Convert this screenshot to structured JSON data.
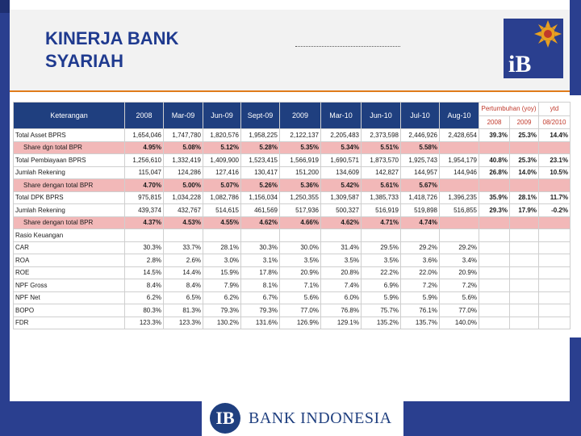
{
  "slide": {
    "title_line1": "KINERJA BANK",
    "title_line2": "SYARIAH",
    "logo_text": "iB",
    "footer_logo_mark": "IB",
    "footer_logo_text": "BANK INDONESIA",
    "colors": {
      "primary": "#2a3f8f",
      "accent": "#e07b1b",
      "share_row": "#f2b8b8"
    }
  },
  "table": {
    "headers": [
      "Keterangan",
      "2008",
      "Mar-09",
      "Jun-09",
      "Sept-09",
      "2009",
      "Mar-10",
      "Jun-10",
      "Jul-10",
      "Aug-10"
    ],
    "growth_header": "Pertumbuhan (yoy)",
    "ytd_header": "ytd",
    "growth_sub": [
      "2008",
      "2009",
      "08/2010"
    ],
    "rows": [
      {
        "label": "Total Asset BPRS",
        "values": [
          "1,654,046",
          "1,747,780",
          "1,820,576",
          "1,958,225",
          "2,122,137",
          "2,205,483",
          "2,373,598",
          "2,446,926",
          "2,428,654"
        ],
        "growth": [
          "39.3%",
          "25.3%",
          "14.4%"
        ],
        "type": "main"
      },
      {
        "label": "Share dgn total BPR",
        "values": [
          "4.95%",
          "5.08%",
          "5.12%",
          "5.28%",
          "5.35%",
          "5.34%",
          "5.51%",
          "5.58%",
          ""
        ],
        "growth": [
          "",
          "",
          ""
        ],
        "type": "share"
      },
      {
        "label": "Total Pembiayaan BPRS",
        "values": [
          "1,256,610",
          "1,332,419",
          "1,409,900",
          "1,523,415",
          "1,566,919",
          "1,690,571",
          "1,873,570",
          "1,925,743",
          "1,954,179"
        ],
        "growth": [
          "40.8%",
          "25.3%",
          "23.1%"
        ],
        "type": "main"
      },
      {
        "label": "Jumlah Rekening",
        "values": [
          "115,047",
          "124,286",
          "127,416",
          "130,417",
          "151,200",
          "134,609",
          "142,827",
          "144,957",
          "144,946"
        ],
        "growth": [
          "26.8%",
          "14.0%",
          "10.5%"
        ],
        "type": "ind"
      },
      {
        "label": "Share dengan total BPR",
        "values": [
          "4.70%",
          "5.00%",
          "5.07%",
          "5.26%",
          "5.36%",
          "5.42%",
          "5.61%",
          "5.67%",
          ""
        ],
        "growth": [
          "",
          "",
          ""
        ],
        "type": "share"
      },
      {
        "label": "Total DPK BPRS",
        "values": [
          "975,815",
          "1,034,228",
          "1,082,786",
          "1,156,034",
          "1,250,355",
          "1,309,587",
          "1,385,733",
          "1,418,726",
          "1,396,235"
        ],
        "growth": [
          "35.9%",
          "28.1%",
          "11.7%"
        ],
        "type": "main"
      },
      {
        "label": "Jumlah Rekening",
        "values": [
          "439,374",
          "432,767",
          "514,615",
          "461,569",
          "517,936",
          "500,327",
          "516,919",
          "519,898",
          "516,855"
        ],
        "growth": [
          "29.3%",
          "17.9%",
          "-0.2%"
        ],
        "type": "ind"
      },
      {
        "label": "Share dengan total BPR",
        "values": [
          "4.37%",
          "4.53%",
          "4.55%",
          "4.62%",
          "4.66%",
          "4.62%",
          "4.71%",
          "4.74%",
          ""
        ],
        "growth": [
          "",
          "",
          ""
        ],
        "type": "share"
      },
      {
        "label": "Rasio Keuangan",
        "values": [
          "",
          "",
          "",
          "",
          "",
          "",
          "",
          "",
          ""
        ],
        "growth": [
          "",
          "",
          ""
        ],
        "type": "main"
      },
      {
        "label": "CAR",
        "values": [
          "30.3%",
          "33.7%",
          "28.1%",
          "30.3%",
          "30.0%",
          "31.4%",
          "29.5%",
          "29.2%",
          "29.2%"
        ],
        "growth": [
          "",
          "",
          ""
        ],
        "type": "ind"
      },
      {
        "label": "ROA",
        "values": [
          "2.8%",
          "2.6%",
          "3.0%",
          "3.1%",
          "3.5%",
          "3.5%",
          "3.5%",
          "3.6%",
          "3.4%"
        ],
        "growth": [
          "",
          "",
          ""
        ],
        "type": "ind"
      },
      {
        "label": "ROE",
        "values": [
          "14.5%",
          "14.4%",
          "15.9%",
          "17.8%",
          "20.9%",
          "20.8%",
          "22.2%",
          "22.0%",
          "20.9%"
        ],
        "growth": [
          "",
          "",
          ""
        ],
        "type": "ind"
      },
      {
        "label": "NPF Gross",
        "values": [
          "8.4%",
          "8.4%",
          "7.9%",
          "8.1%",
          "7.1%",
          "7.4%",
          "6.9%",
          "7.2%",
          "7.2%"
        ],
        "growth": [
          "",
          "",
          ""
        ],
        "type": "ind"
      },
      {
        "label": "NPF Net",
        "values": [
          "6.2%",
          "6.5%",
          "6.2%",
          "6.7%",
          "5.6%",
          "6.0%",
          "5.9%",
          "5.9%",
          "5.6%"
        ],
        "growth": [
          "",
          "",
          ""
        ],
        "type": "ind"
      },
      {
        "label": "BOPO",
        "values": [
          "80.3%",
          "81.3%",
          "79.3%",
          "79.3%",
          "77.0%",
          "76.8%",
          "75.7%",
          "76.1%",
          "77.0%"
        ],
        "growth": [
          "",
          "",
          ""
        ],
        "type": "ind"
      },
      {
        "label": "FDR",
        "values": [
          "123.3%",
          "123.3%",
          "130.2%",
          "131.6%",
          "126.9%",
          "129.1%",
          "135.2%",
          "135.7%",
          "140.0%"
        ],
        "growth": [
          "",
          "",
          ""
        ],
        "type": "ind"
      }
    ]
  }
}
